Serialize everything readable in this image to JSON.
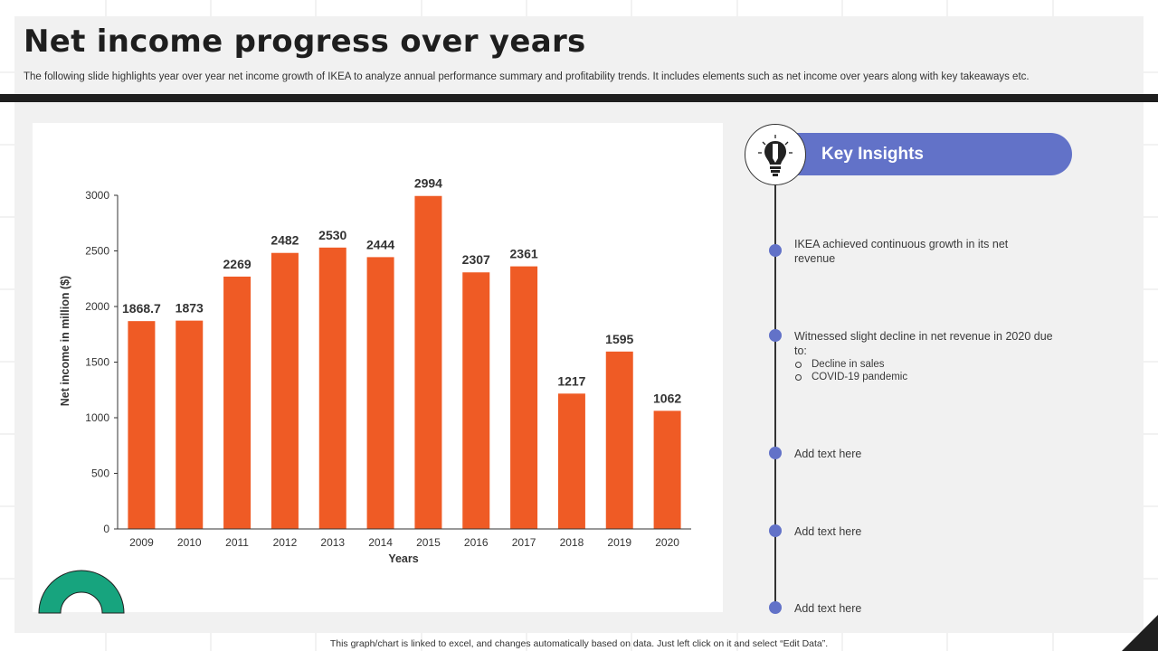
{
  "header": {
    "title": "Net income progress over years",
    "subtitle": "The following slide highlights year over year net income growth of IKEA to analyze annual performance summary and profitability trends. It includes elements such as net income over years along with key takeaways etc."
  },
  "chart_data": {
    "type": "bar",
    "categories": [
      "2009",
      "2010",
      "2011",
      "2012",
      "2013",
      "2014",
      "2015",
      "2016",
      "2017",
      "2018",
      "2019",
      "2020"
    ],
    "values": [
      1868.7,
      1873,
      2269,
      2482,
      2530,
      2444,
      2994,
      2307,
      2361,
      1217,
      1595,
      1062
    ],
    "data_labels": [
      "1868.7",
      "1873",
      "2269",
      "2482",
      "2530",
      "2444",
      "2994",
      "2307",
      "2361",
      "1217",
      "1595",
      "1062"
    ],
    "xlabel": "Years",
    "ylabel": "Net income in million ($)",
    "ylim": [
      0,
      3000
    ],
    "yticks": [
      "0",
      "500",
      "1000",
      "1500",
      "2000",
      "2500",
      "3000"
    ],
    "bar_color": "#ef5b25",
    "grid": false
  },
  "insights": {
    "title": "Key Insights",
    "icon": "lightbulb-pencil-icon",
    "accent_color": "#6272c8",
    "items": [
      {
        "text": "IKEA achieved continuous growth in its net revenue"
      },
      {
        "text": "Witnessed slight decline in net revenue in 2020 due to:",
        "sub": [
          "Decline in sales",
          "COVID-19 pandemic"
        ]
      },
      {
        "text": "Add text here"
      },
      {
        "text": "Add text here"
      },
      {
        "text": "Add text here"
      }
    ]
  },
  "footer": {
    "note": "This graph/chart is linked to excel, and changes automatically based on data. Just left click on it and select “Edit Data”."
  },
  "colors": {
    "title": "#1e1e1e",
    "divider": "#1f1f1f",
    "panel": "#f1f1f1",
    "decor_arc": "#17a47e"
  }
}
